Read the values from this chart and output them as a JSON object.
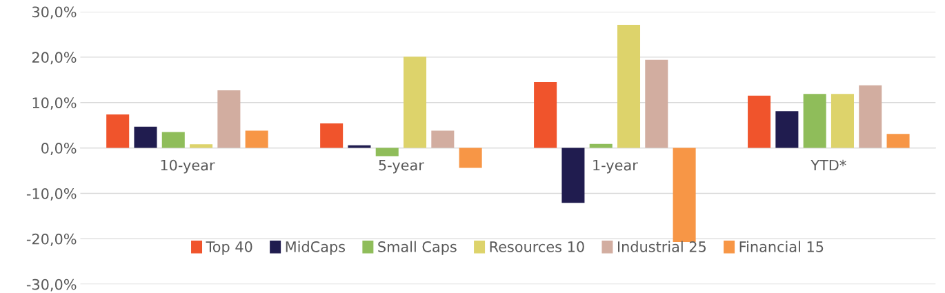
{
  "chart_data": {
    "type": "bar",
    "categories": [
      "10-year",
      "5-year",
      "1-year",
      "YTD*"
    ],
    "series": [
      {
        "name": "Top 40",
        "color": "#f0542c",
        "values": [
          7.4,
          5.4,
          14.5,
          11.5
        ]
      },
      {
        "name": "MidCaps",
        "color": "#201c4f",
        "values": [
          4.7,
          0.6,
          -12.1,
          8.1
        ]
      },
      {
        "name": "Small Caps",
        "color": "#8fbd5a",
        "values": [
          3.5,
          -1.8,
          0.9,
          11.9
        ]
      },
      {
        "name": "Resources 10",
        "color": "#ddd36b",
        "values": [
          0.8,
          20.1,
          27.1,
          11.9
        ]
      },
      {
        "name": "Industrial 25",
        "color": "#d2ada0",
        "values": [
          12.7,
          3.8,
          19.4,
          13.8
        ]
      },
      {
        "name": "Financial 15",
        "color": "#f79646",
        "values": [
          3.8,
          -4.4,
          -20.7,
          3.1
        ]
      }
    ],
    "ylim": [
      -30,
      30
    ],
    "yticks": [
      {
        "value": -30,
        "label": "-30,0%"
      },
      {
        "value": -20,
        "label": "-20,0%"
      },
      {
        "value": -10,
        "label": "-10,0%"
      },
      {
        "value": 0,
        "label": "0,0%"
      },
      {
        "value": 10,
        "label": "10,0%"
      },
      {
        "value": 20,
        "label": "20,0%"
      },
      {
        "value": 30,
        "label": "30,0%"
      }
    ],
    "grid": "y",
    "legend": "bottom"
  }
}
